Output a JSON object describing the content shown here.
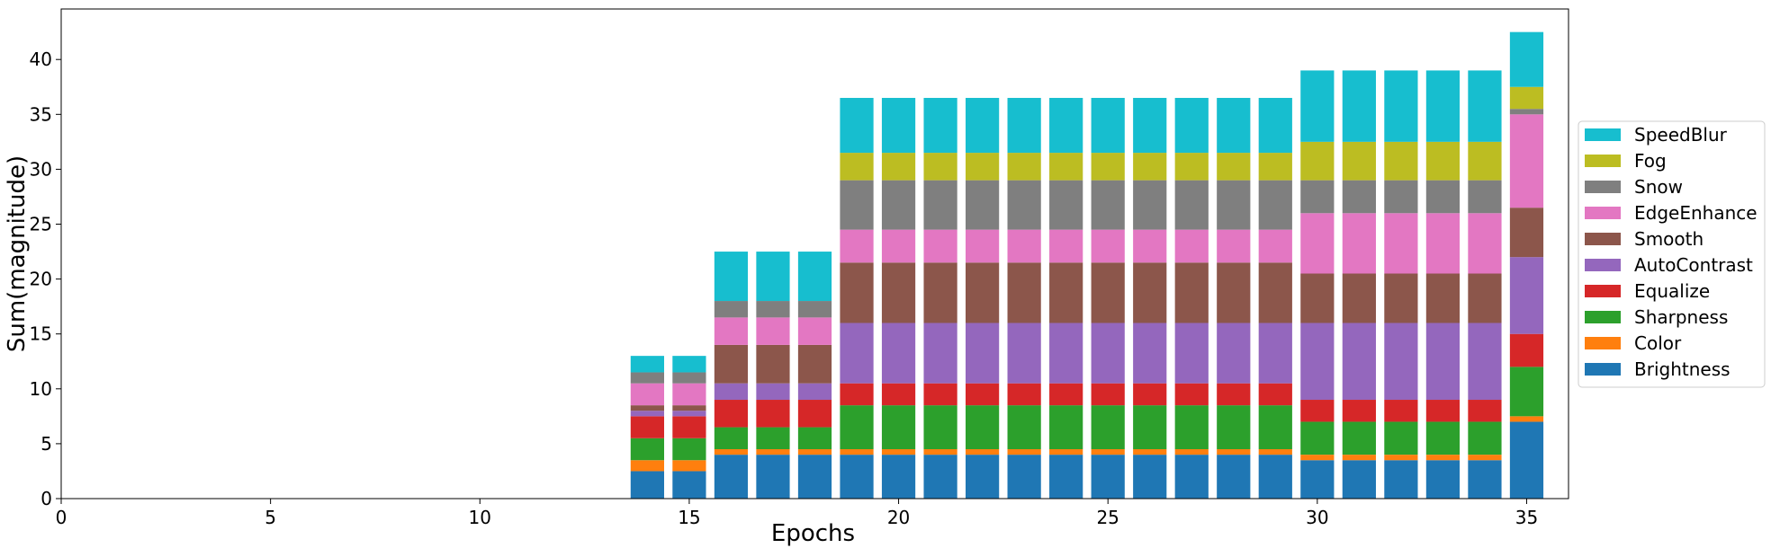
{
  "chart_data": {
    "type": "bar",
    "stacked": true,
    "title": "",
    "xlabel": "Epochs",
    "ylabel": "Sum(magnitude)",
    "xlim": [
      0,
      36
    ],
    "ylim": [
      0,
      44.6
    ],
    "xticks": [
      0,
      5,
      10,
      15,
      20,
      25,
      30,
      35
    ],
    "yticks": [
      0,
      5,
      10,
      15,
      20,
      25,
      30,
      35,
      40
    ],
    "grid": false,
    "legend_position": "center-right outside",
    "x": [
      14,
      15,
      16,
      17,
      18,
      19,
      20,
      21,
      22,
      23,
      24,
      25,
      26,
      27,
      28,
      29,
      30,
      31,
      32,
      33,
      34,
      35
    ],
    "series": [
      {
        "name": "Brightness",
        "color": "#1f77b4",
        "values": [
          2.5,
          2.5,
          4,
          4,
          4,
          4,
          4,
          4,
          4,
          4,
          4,
          4,
          4,
          4,
          4,
          4,
          3.5,
          3.5,
          3.5,
          3.5,
          3.5,
          7
        ]
      },
      {
        "name": "Color",
        "color": "#ff7f0e",
        "values": [
          1,
          1,
          0.5,
          0.5,
          0.5,
          0.5,
          0.5,
          0.5,
          0.5,
          0.5,
          0.5,
          0.5,
          0.5,
          0.5,
          0.5,
          0.5,
          0.5,
          0.5,
          0.5,
          0.5,
          0.5,
          0.5
        ]
      },
      {
        "name": "Sharpness",
        "color": "#2ca02c",
        "values": [
          2,
          2,
          2,
          2,
          2,
          4,
          4,
          4,
          4,
          4,
          4,
          4,
          4,
          4,
          4,
          4,
          3,
          3,
          3,
          3,
          3,
          4.5
        ]
      },
      {
        "name": "Equalize",
        "color": "#d62728",
        "values": [
          2,
          2,
          2.5,
          2.5,
          2.5,
          2,
          2,
          2,
          2,
          2,
          2,
          2,
          2,
          2,
          2,
          2,
          2,
          2,
          2,
          2,
          2,
          3
        ]
      },
      {
        "name": "AutoContrast",
        "color": "#9467bd",
        "values": [
          0.5,
          0.5,
          1.5,
          1.5,
          1.5,
          5.5,
          5.5,
          5.5,
          5.5,
          5.5,
          5.5,
          5.5,
          5.5,
          5.5,
          5.5,
          5.5,
          7,
          7,
          7,
          7,
          7,
          7
        ]
      },
      {
        "name": "Smooth",
        "color": "#8c564b",
        "values": [
          0.5,
          0.5,
          3.5,
          3.5,
          3.5,
          5.5,
          5.5,
          5.5,
          5.5,
          5.5,
          5.5,
          5.5,
          5.5,
          5.5,
          5.5,
          5.5,
          4.5,
          4.5,
          4.5,
          4.5,
          4.5,
          4.5
        ]
      },
      {
        "name": "EdgeEnhance",
        "color": "#e377c2",
        "values": [
          2,
          2,
          2.5,
          2.5,
          2.5,
          3,
          3,
          3,
          3,
          3,
          3,
          3,
          3,
          3,
          3,
          3,
          5.5,
          5.5,
          5.5,
          5.5,
          5.5,
          8.5
        ]
      },
      {
        "name": "Snow",
        "color": "#7f7f7f",
        "values": [
          1,
          1,
          1.5,
          1.5,
          1.5,
          4.5,
          4.5,
          4.5,
          4.5,
          4.5,
          4.5,
          4.5,
          4.5,
          4.5,
          4.5,
          4.5,
          3,
          3,
          3,
          3,
          3,
          0.5
        ]
      },
      {
        "name": "Fog",
        "color": "#bcbd22",
        "values": [
          0,
          0,
          0,
          0,
          0,
          2.5,
          2.5,
          2.5,
          2.5,
          2.5,
          2.5,
          2.5,
          2.5,
          2.5,
          2.5,
          2.5,
          3.5,
          3.5,
          3.5,
          3.5,
          3.5,
          2
        ]
      },
      {
        "name": "SpeedBlur",
        "color": "#17becf",
        "values": [
          1.5,
          1.5,
          4.5,
          4.5,
          4.5,
          5,
          5,
          5,
          5,
          5,
          5,
          5,
          5,
          5,
          5,
          5,
          6.5,
          6.5,
          6.5,
          6.5,
          6.5,
          5
        ]
      }
    ]
  }
}
